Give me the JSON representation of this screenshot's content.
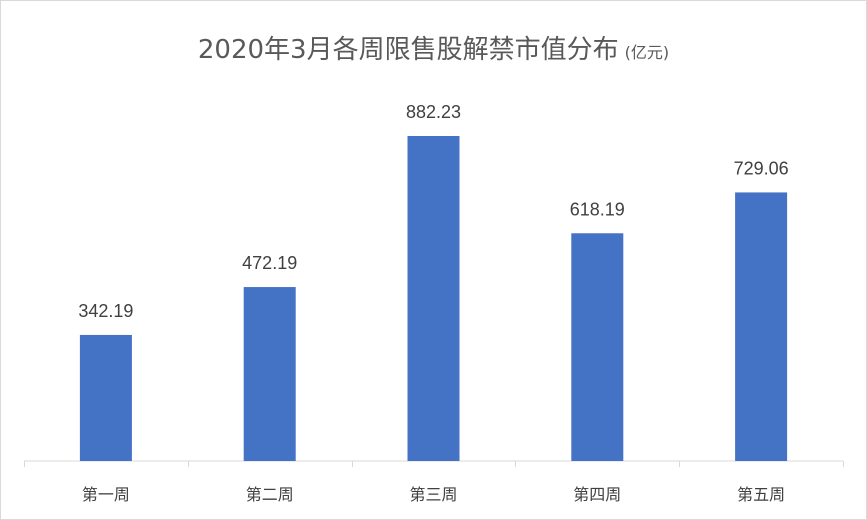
{
  "chart_data": {
    "type": "bar",
    "title": "2020年3月各周限售股解禁市值分布",
    "unit": "(亿元)",
    "categories": [
      "第一周",
      "第二周",
      "第三周",
      "第四周",
      "第五周"
    ],
    "values": [
      342.19,
      472.19,
      882.23,
      618.19,
      729.06
    ],
    "value_labels": [
      "342.19",
      "472.19",
      "882.23",
      "618.19",
      "729.06"
    ],
    "xlabel": "",
    "ylabel": "",
    "ylim": [
      0,
      882.23
    ],
    "grid": false,
    "legend": "none",
    "colors": {
      "bar": "#4472C4",
      "axis": "#d9d9d9"
    }
  }
}
